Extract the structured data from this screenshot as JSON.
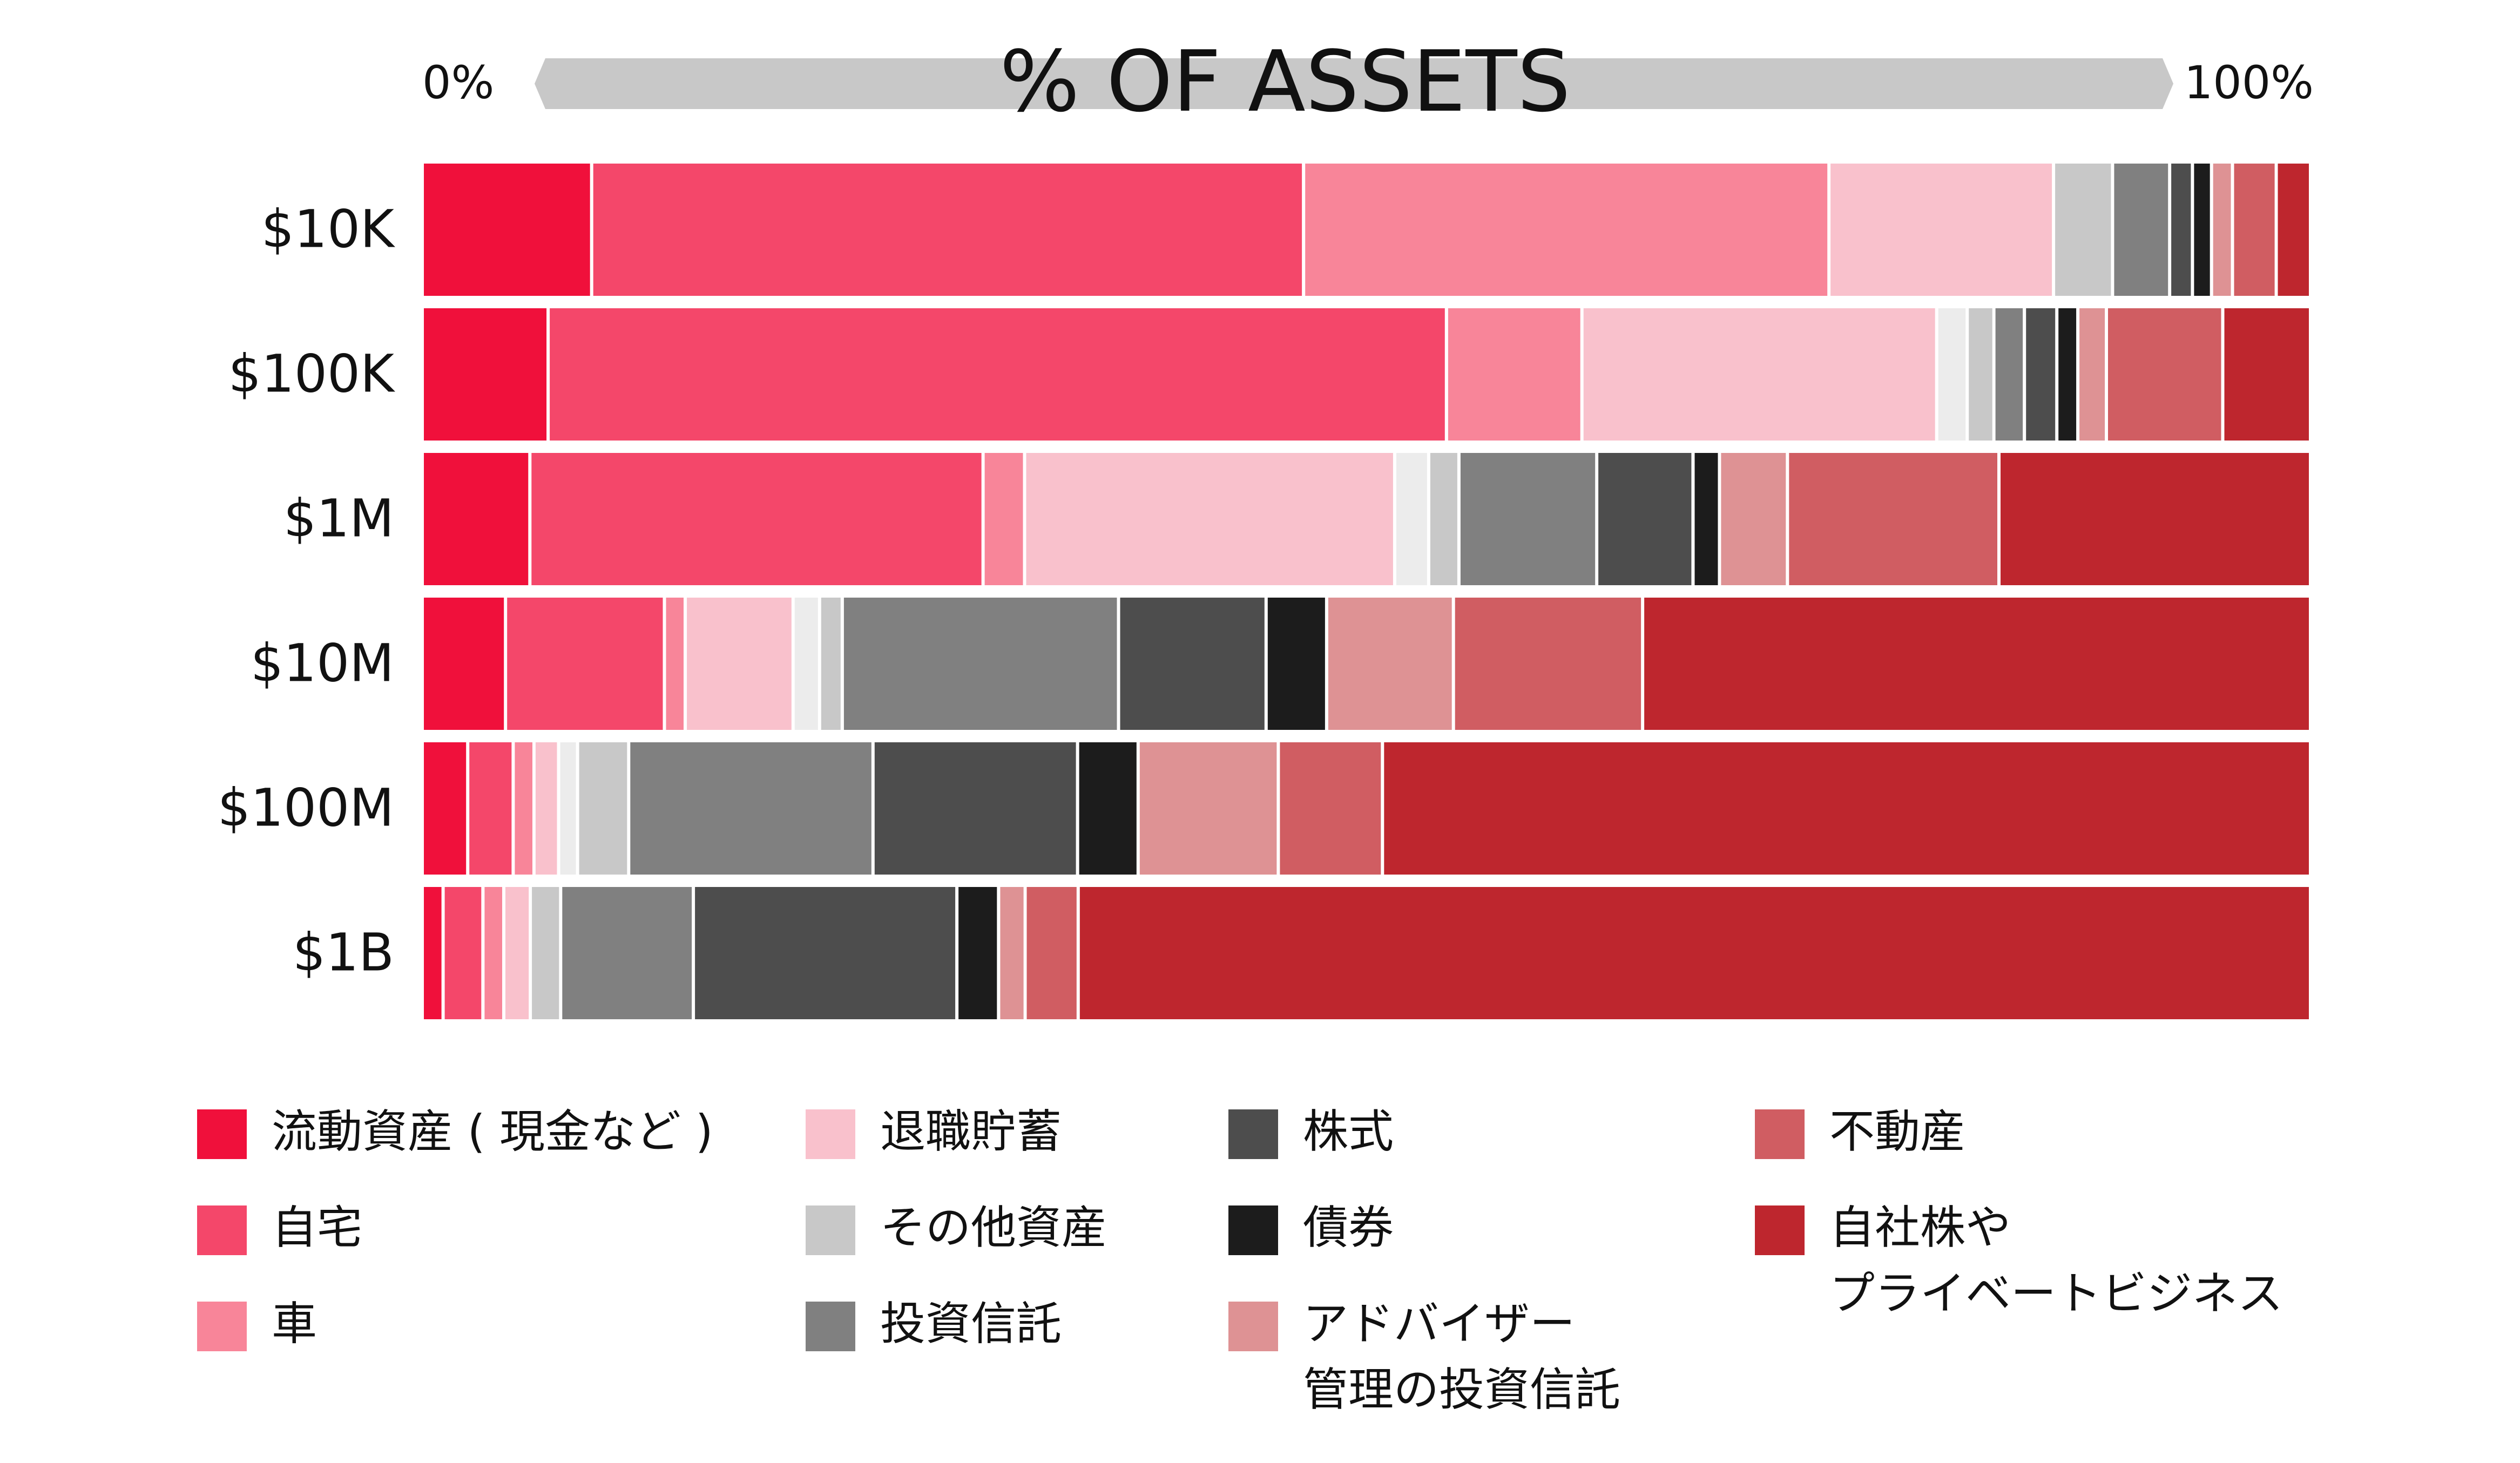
{
  "chart_data": {
    "type": "bar",
    "orientation": "horizontal",
    "stacked": true,
    "normalized": true,
    "title": "% OF ASSETS",
    "axis_min_label": "0%",
    "axis_max_label": "100%",
    "categories": [
      "$10K",
      "$100K",
      "$1M",
      "$10M",
      "$100M",
      "$1B"
    ],
    "series": [
      {
        "name": "流動資産 ( 現金など )",
        "color": "#f0103b",
        "values": [
          8.9,
          6.6,
          5.7,
          4.4,
          2.4,
          1.1
        ]
      },
      {
        "name": "自宅",
        "color": "#f4476a",
        "values": [
          37.4,
          47.1,
          24.0,
          8.4,
          2.4,
          2.1
        ]
      },
      {
        "name": "車",
        "color": "#f88599",
        "values": [
          27.6,
          7.1,
          2.2,
          1.1,
          1.1,
          1.1
        ]
      },
      {
        "name": "退職貯蓄",
        "color": "#f9c1cc",
        "values": [
          11.8,
          18.6,
          19.6,
          5.7,
          1.3,
          1.4
        ]
      },
      {
        "name": "その他資産",
        "color": "#ececec",
        "values": [
          0,
          1.6,
          1.8,
          1.4,
          1.0,
          0
        ]
      },
      {
        "name": "その他資産",
        "color": "#c8c8c8",
        "values": [
          3.1,
          1.4,
          1.6,
          1.2,
          2.7,
          1.6
        ]
      },
      {
        "name": "投資信託",
        "color": "#808080",
        "values": [
          3.0,
          1.6,
          7.3,
          14.6,
          12.9,
          7.0
        ]
      },
      {
        "name": "株式",
        "color": "#4d4d4d",
        "values": [
          1.2,
          1.7,
          5.1,
          7.8,
          10.8,
          13.9
        ]
      },
      {
        "name": "債券",
        "color": "#1c1c1c",
        "values": [
          1.0,
          1.1,
          1.4,
          3.2,
          3.2,
          2.2
        ]
      },
      {
        "name": "アドバイザー管理の投資信託",
        "color": "#de9294",
        "values": [
          1.1,
          1.5,
          3.6,
          6.7,
          7.4,
          1.4
        ]
      },
      {
        "name": "不動産",
        "color": "#d05d62",
        "values": [
          2.3,
          6.1,
          11.2,
          10.0,
          5.5,
          2.8
        ]
      },
      {
        "name": "自社株やプライベートビジネス",
        "color": "#be262e",
        "values": [
          1.8,
          4.6,
          16.5,
          35.3,
          49.0,
          65.0
        ]
      }
    ],
    "legend": [
      {
        "lines": [
          "流動資産 ( 現金など )"
        ],
        "color": "#f0103b"
      },
      {
        "lines": [
          "自宅"
        ],
        "color": "#f4476a"
      },
      {
        "lines": [
          "車"
        ],
        "color": "#f88599"
      },
      {
        "lines": [
          "退職貯蓄"
        ],
        "color": "#f9c1cc"
      },
      {
        "lines": [
          "その他資産"
        ],
        "color": "#c8c8c8"
      },
      {
        "lines": [
          "投資信託"
        ],
        "color": "#808080"
      },
      {
        "lines": [
          "株式"
        ],
        "color": "#4d4d4d"
      },
      {
        "lines": [
          "債券"
        ],
        "color": "#1c1c1c"
      },
      {
        "lines": [
          "アドバイザー",
          "管理の投資信託"
        ],
        "color": "#de9294"
      },
      {
        "lines": [
          "不動産"
        ],
        "color": "#d05d62"
      },
      {
        "lines": [
          "自社株や",
          "プライベートビジネス"
        ],
        "color": "#be262e"
      }
    ],
    "legend_columns": 4,
    "legend_placement": "bottom",
    "grid": false
  }
}
